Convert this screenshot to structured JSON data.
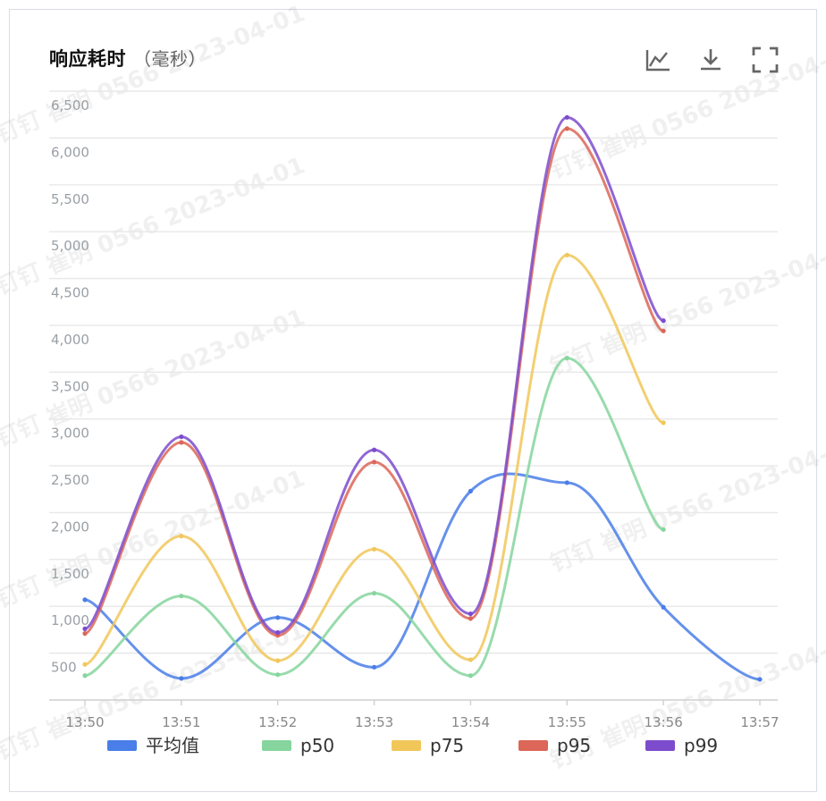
{
  "title": "响应耗时",
  "unit": "（毫秒）",
  "toolbar": {
    "icons": [
      "line-chart-icon",
      "download-icon",
      "fullscreen-icon"
    ]
  },
  "watermark": "钉钉 崔明 0566 2023-04-01",
  "colors": {
    "avg": "#4a7ee8",
    "p50": "#86d59e",
    "p75": "#f1c75a",
    "p95": "#dc6658",
    "p99": "#7d4ccc",
    "grid": "#e8e8e8"
  },
  "chart_data": {
    "type": "line",
    "title": "响应耗时（毫秒）",
    "xlabel": "",
    "ylabel": "",
    "x": [
      "13:50",
      "13:51",
      "13:52",
      "13:53",
      "13:54",
      "13:55",
      "13:56",
      "13:57"
    ],
    "y_ticks": [
      "500",
      "1,000",
      "1,500",
      "2,000",
      "2,500",
      "3,000",
      "3,500",
      "4,000",
      "4,500",
      "5,000",
      "5,500",
      "6,000",
      "6,500"
    ],
    "ylim": [
      0,
      6500
    ],
    "grid": true,
    "smooth": true,
    "legend_position": "bottom",
    "series": [
      {
        "key": "avg",
        "name": "平均值",
        "values": [
          1070,
          230,
          880,
          350,
          2230,
          2320,
          990,
          220
        ]
      },
      {
        "key": "p50",
        "name": "p50",
        "values": [
          260,
          1110,
          270,
          1140,
          260,
          3650,
          1820,
          null
        ]
      },
      {
        "key": "p75",
        "name": "p75",
        "values": [
          380,
          1750,
          420,
          1610,
          430,
          4750,
          2960,
          null
        ]
      },
      {
        "key": "p95",
        "name": "p95",
        "values": [
          710,
          2750,
          690,
          2540,
          870,
          6100,
          3940,
          null
        ]
      },
      {
        "key": "p99",
        "name": "p99",
        "values": [
          760,
          2810,
          720,
          2670,
          920,
          6220,
          4050,
          null
        ]
      }
    ]
  }
}
